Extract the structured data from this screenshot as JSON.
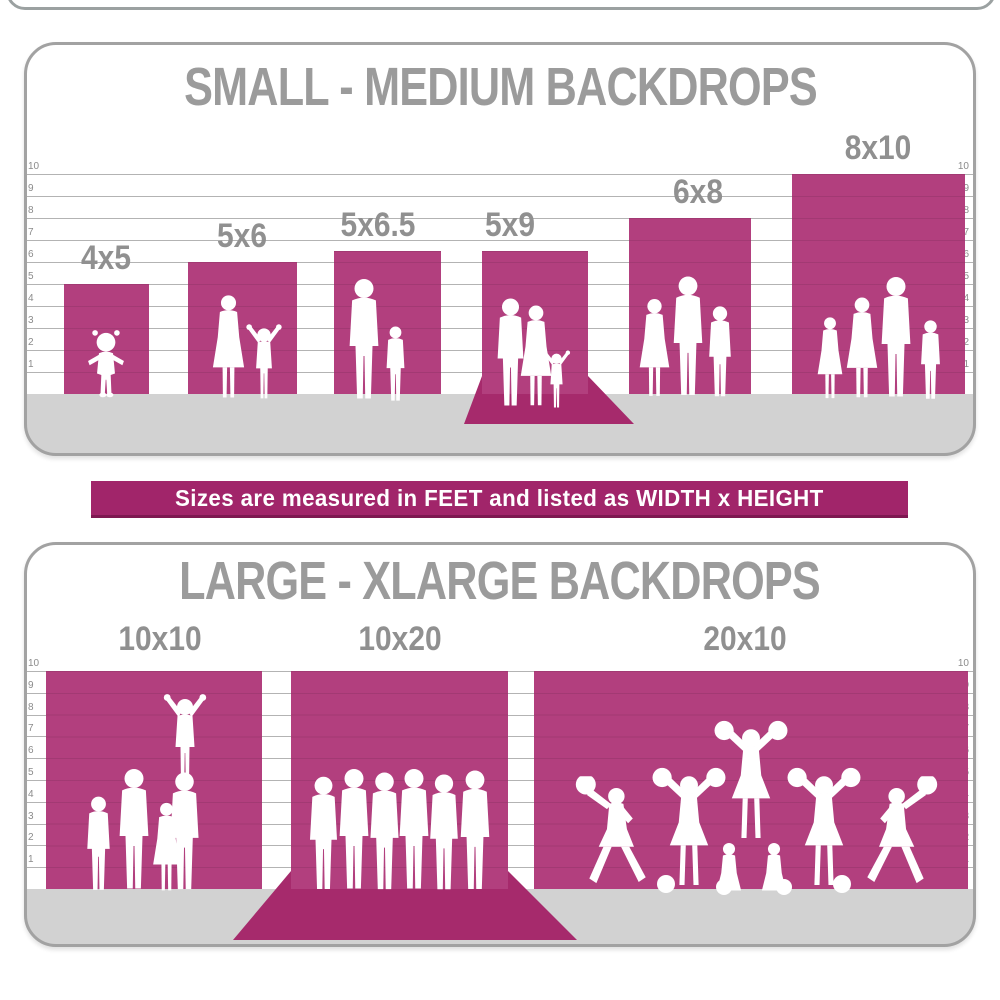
{
  "top_panel": {
    "title": "SMALL - MEDIUM BACKDROPS",
    "ruler_feet": [
      "1",
      "2",
      "3",
      "4",
      "5",
      "6",
      "7",
      "8",
      "9",
      "10"
    ],
    "sizes": [
      {
        "label": "4x5",
        "width_ft": 4,
        "height_ft": 5,
        "floor_sweep": false,
        "figures": [
          "toddler-girl"
        ]
      },
      {
        "label": "5x6",
        "width_ft": 5,
        "height_ft": 6,
        "floor_sweep": false,
        "figures": [
          "woman",
          "child-arms-raised"
        ]
      },
      {
        "label": "5x6.5",
        "width_ft": 5,
        "height_ft": 6.5,
        "floor_sweep": false,
        "figures": [
          "man",
          "boy"
        ]
      },
      {
        "label": "5x9",
        "width_ft": 5,
        "height_ft": 9,
        "floor_sweep": true,
        "figures": [
          "man",
          "woman",
          "child-arms-raised"
        ]
      },
      {
        "label": "6x8",
        "width_ft": 6,
        "height_ft": 8,
        "floor_sweep": false,
        "figures": [
          "woman",
          "man",
          "boy"
        ]
      },
      {
        "label": "8x10",
        "width_ft": 8,
        "height_ft": 10,
        "floor_sweep": false,
        "figures": [
          "girl",
          "woman",
          "man",
          "boy"
        ]
      }
    ]
  },
  "divider_banner": {
    "text": "Sizes are measured in FEET and listed as WIDTH x HEIGHT"
  },
  "bottom_panel": {
    "title": "LARGE - XLARGE BACKDROPS",
    "ruler_feet": [
      "1",
      "2",
      "3",
      "4",
      "5",
      "6",
      "7",
      "8",
      "9",
      "10"
    ],
    "sizes": [
      {
        "label": "10x10",
        "width_ft": 10,
        "height_ft": 10,
        "floor_sweep": false,
        "figures": [
          "boy",
          "man",
          "girl",
          "man-with-woman-on-shoulders"
        ]
      },
      {
        "label": "10x20",
        "width_ft": 10,
        "height_ft": 20,
        "floor_sweep": true,
        "figures": [
          "six-men-group"
        ]
      },
      {
        "label": "20x10",
        "width_ft": 20,
        "height_ft": 10,
        "floor_sweep": false,
        "figures": [
          "cheerleader-squad-with-pyramid"
        ]
      }
    ]
  },
  "colors": {
    "backdrop_magenta": "#b23f7e",
    "floor_sweep_magenta": "#a62a6c",
    "floor_gray": "#d2d2d2",
    "ruler_line": "#b3b3b3",
    "ruler_number": "#8b8b8b",
    "title_gray": "#9b9b9b",
    "label_gray": "#909090",
    "banner_background": "#a1256a",
    "banner_text": "#ffffff",
    "panel_border": "#a2a2a2",
    "silhouette": "#ffffff"
  }
}
